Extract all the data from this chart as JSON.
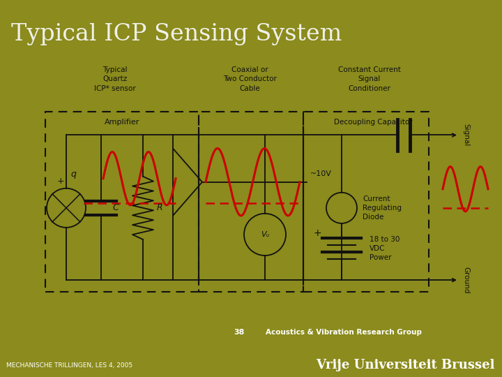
{
  "title": "Typical ICP Sensing System",
  "title_bg_color": "#6b6b4a",
  "title_text_color": "#f0f0e8",
  "title_fontsize": 24,
  "main_bg_color": "#ffffff",
  "footer_bg_color": "#8b8b1e",
  "footer_dark_color": "#5a5a18",
  "page_number": "38",
  "footer_right_top": "Acoustics & Vibration Research Group",
  "footer_right_bottom": "Vrije Universiteit Brussel",
  "footer_left": "MECHANISCHE TRILLINGEN, LES 4, 2005",
  "black": "#111111",
  "red": "#cc0000",
  "label_top_left": "Typical\nQuartz\nICP* sensor",
  "label_top_mid": "Coaxial or\nTwo Conductor\nCable",
  "label_top_right": "Constant Current\nSignal\nConditioner",
  "label_amplifier": "Amplifier",
  "label_decoupling": "Decoupling Capacitor",
  "label_signal": "Signal",
  "label_ground": "Ground",
  "label_10v": "~10V",
  "label_crd": "Current\nRegulating\nDiode",
  "label_power": "18 to 30\nVDC\nPower",
  "label_q": "q",
  "label_c": "C",
  "label_r": "R",
  "label_vu": "Vᵤ"
}
